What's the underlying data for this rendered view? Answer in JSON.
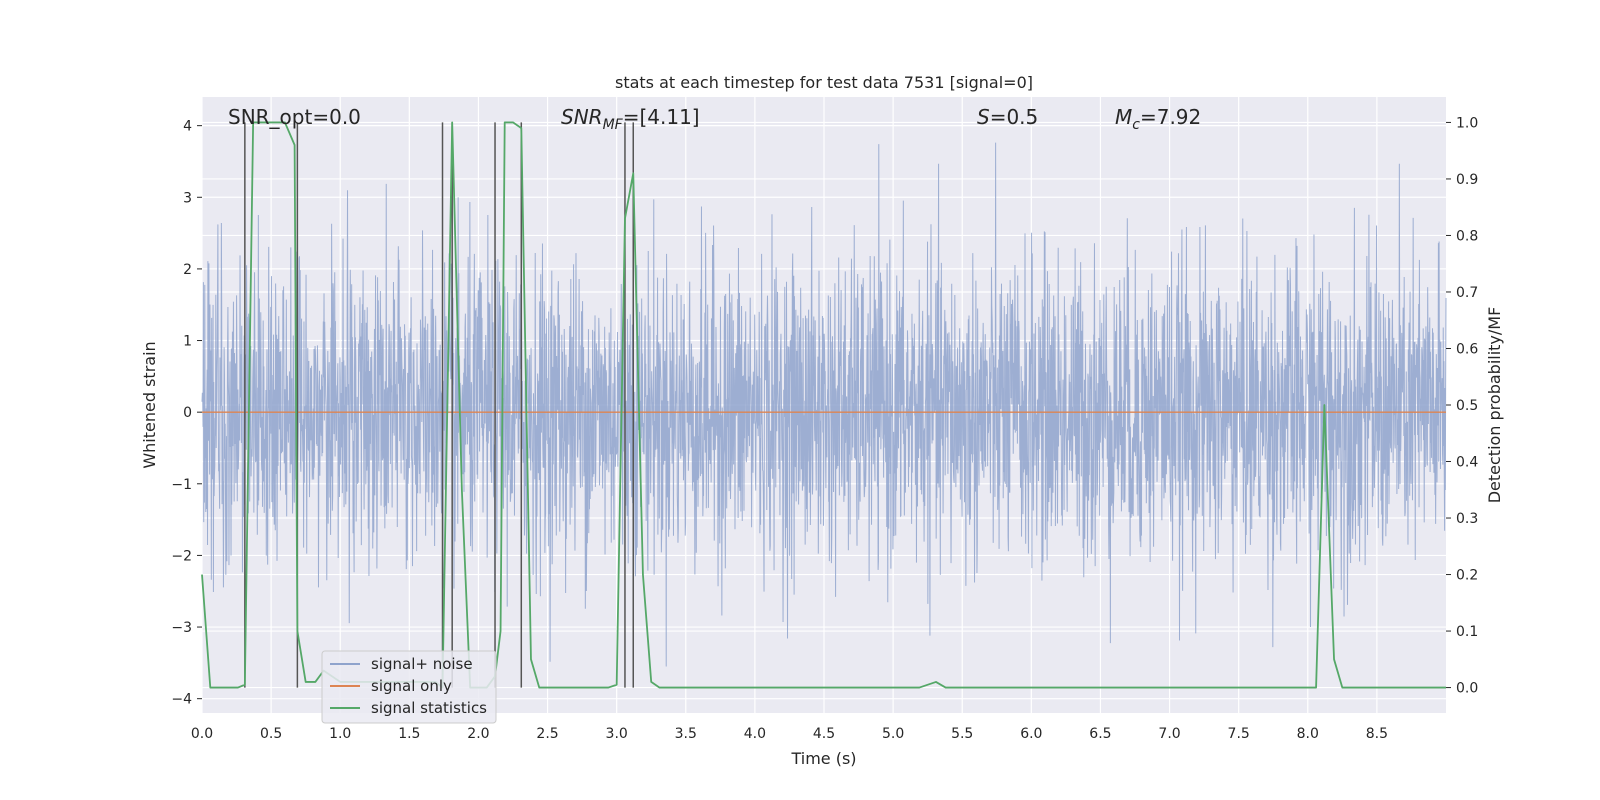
{
  "chart_data": {
    "type": "line",
    "title": "stats at each timestep for test data 7531 [signal=0]",
    "xlabel": "Time (s)",
    "ylabel_left": "Whitened strain",
    "ylabel_right": "Detection probability/MF",
    "xlim": [
      0.0,
      9.0
    ],
    "ylim_left": [
      -4.2,
      4.4
    ],
    "ylim_right": [
      -0.045,
      1.045
    ],
    "xticks": [
      0.0,
      0.5,
      1.0,
      1.5,
      2.0,
      2.5,
      3.0,
      3.5,
      4.0,
      4.5,
      5.0,
      5.5,
      6.0,
      6.5,
      7.0,
      7.5,
      8.0,
      8.5
    ],
    "xtick_labels": [
      "0.0",
      "0.5",
      "1.0",
      "1.5",
      "2.0",
      "2.5",
      "3.0",
      "3.5",
      "4.0",
      "4.5",
      "5.0",
      "5.5",
      "6.0",
      "6.5",
      "7.0",
      "7.5",
      "8.0",
      "8.5"
    ],
    "yticks_left": [
      -4,
      -3,
      -2,
      -1,
      0,
      1,
      2,
      3,
      4
    ],
    "ytick_labels_left": [
      "−4",
      "−3",
      "−2",
      "−1",
      "0",
      "1",
      "2",
      "3",
      "4"
    ],
    "yticks_right": [
      0.0,
      0.1,
      0.2,
      0.3,
      0.4,
      0.5,
      0.6,
      0.7,
      0.8,
      0.9,
      1.0
    ],
    "ytick_labels_right": [
      "0.0",
      "0.1",
      "0.2",
      "0.3",
      "0.4",
      "0.5",
      "0.6",
      "0.7",
      "0.8",
      "0.9",
      "1.0"
    ],
    "annotations": {
      "snr_opt": {
        "prefix": "SNR_opt=",
        "value": "0.0"
      },
      "snr_mf": {
        "italic": "SNR",
        "sub": "MF",
        "rest": "=[4.11]"
      },
      "s_param": {
        "italic": "S",
        "rest": "=0.5"
      },
      "mc": {
        "italic": "M",
        "sub": "c",
        "rest": "=7.92"
      }
    },
    "series": [
      {
        "name": "signal+ noise",
        "color": "#8fa3cc",
        "description": "whitened strain noise, amplitude roughly between -3.7 and 3.8"
      },
      {
        "name": "signal only",
        "color": "#dd8452",
        "x": [
          0.0,
          9.0
        ],
        "y": [
          0.0,
          0.0
        ]
      },
      {
        "name": "signal statistics",
        "color": "#55a868",
        "axis": "right",
        "x": [
          0.0,
          0.06,
          0.15,
          0.26,
          0.31,
          0.37,
          0.44,
          0.53,
          0.6,
          0.67,
          0.69,
          0.75,
          0.82,
          0.88,
          0.94,
          1.0,
          1.06,
          1.12,
          1.19,
          1.25,
          1.31,
          1.38,
          1.44,
          1.5,
          1.56,
          1.62,
          1.69,
          1.74,
          1.81,
          1.88,
          1.94,
          2.0,
          2.06,
          2.12,
          2.16,
          2.19,
          2.25,
          2.31,
          2.38,
          2.44,
          2.5,
          2.56,
          2.62,
          2.69,
          2.75,
          2.81,
          2.88,
          2.94,
          3.0,
          3.06,
          3.12,
          3.19,
          3.25,
          3.31,
          3.38,
          3.5,
          4.0,
          4.5,
          5.0,
          5.19,
          5.31,
          5.38,
          5.5,
          6.0,
          6.5,
          7.0,
          7.5,
          8.0,
          8.06,
          8.12,
          8.19,
          8.25,
          8.31,
          9.0
        ],
        "y": [
          0.2,
          0.0,
          0.0,
          0.0,
          0.005,
          1.0,
          1.0,
          1.0,
          1.0,
          0.96,
          0.1,
          0.01,
          0.01,
          0.03,
          0.02,
          0.01,
          0.01,
          0.01,
          0.01,
          0.01,
          0.01,
          0.01,
          0.01,
          0.01,
          0.01,
          0.01,
          0.01,
          0.0,
          1.0,
          0.35,
          0.0,
          0.0,
          0.0,
          0.02,
          0.1,
          1.0,
          1.0,
          0.99,
          0.05,
          0.0,
          0.0,
          0.0,
          0.0,
          0.0,
          0.0,
          0.0,
          0.0,
          0.0,
          0.005,
          0.83,
          0.91,
          0.2,
          0.01,
          0.0,
          0.0,
          0.0,
          0.0,
          0.0,
          0.0,
          0.0,
          0.01,
          0.0,
          0.0,
          0.0,
          0.0,
          0.0,
          0.0,
          0.0,
          0.0,
          0.5,
          0.05,
          0.0,
          0.0,
          0.0
        ]
      }
    ],
    "vertical_markers": {
      "color": "#555555",
      "x": [
        0.31,
        0.69,
        1.74,
        1.81,
        2.12,
        2.31,
        3.06,
        3.12
      ]
    },
    "legend": {
      "location": "lower-left",
      "entries": [
        "signal+ noise",
        "signal only",
        "signal statistics"
      ]
    }
  }
}
